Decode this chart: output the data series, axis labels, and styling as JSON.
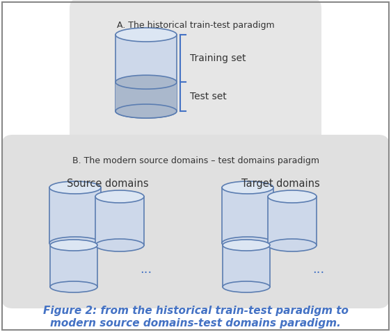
{
  "bg_color": "#ffffff",
  "panel_bg_A": "#e6e6e6",
  "panel_bg_B": "#e0e0e0",
  "cylinder_face_color": "#cdd8ea",
  "cylinder_edge_color": "#5b7db1",
  "cylinder_top_color": "#dce6f3",
  "cylinder_water_color": "#aab8cc",
  "bracket_color": "#4472c4",
  "label_A": "A. The historical train-test paradigm",
  "label_B": "B. The modern source domains – test domains paradigm",
  "training_set": "Training set",
  "test_set": "Test set",
  "source_domains": "Source domains",
  "target_domains": "Target domains",
  "dots": "...",
  "caption_line1": "Figure 2: from the historical train-test paradigm to",
  "caption_line2": "modern source domains-test domains paradigm.",
  "caption_color": "#4472c4",
  "caption_fontsize": 11,
  "border_color": "#888888"
}
